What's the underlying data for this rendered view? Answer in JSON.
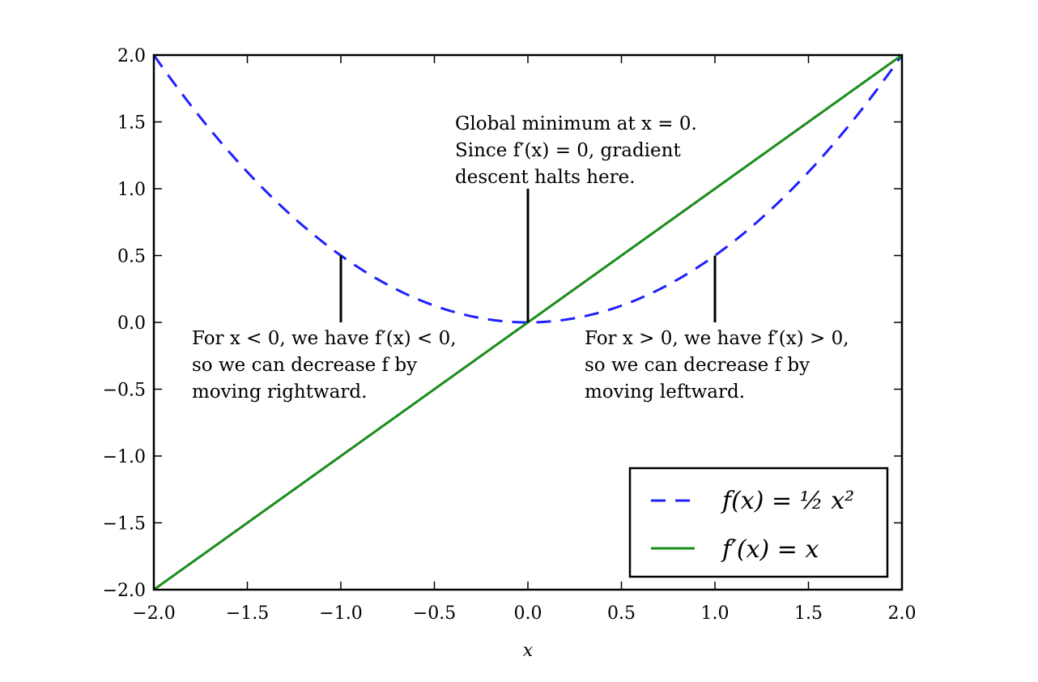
{
  "chart_data": {
    "type": "line",
    "xlabel": "x",
    "xlim": [
      -2.0,
      2.0
    ],
    "ylim": [
      -2.0,
      2.0
    ],
    "x_ticks": [
      "−2.0",
      "−1.5",
      "−1.0",
      "−0.5",
      "0.0",
      "0.5",
      "1.0",
      "1.5",
      "2.0"
    ],
    "y_ticks": [
      "−2.0",
      "−1.5",
      "−1.0",
      "−0.5",
      "0.0",
      "0.5",
      "1.0",
      "1.5",
      "2.0"
    ],
    "grid": false,
    "legend_position": "bottom-right",
    "series": [
      {
        "name": "f(x) = ½ x²",
        "function": "0.5*x^2",
        "style": "dashed",
        "color": "#1f1fff"
      },
      {
        "name": "f′(x) = x",
        "function": "x",
        "style": "solid",
        "color": "#1a8c1a"
      }
    ],
    "annotations": [
      {
        "lines": [
          "Global minimum at x = 0.",
          "Since f′(x) = 0, gradient",
          "descent halts here."
        ],
        "point": [
          0.0,
          0.0
        ],
        "text_anchor": [
          0.0,
          1.0
        ]
      },
      {
        "lines": [
          "For x < 0, we have f′(x) < 0,",
          "so we can decrease f by",
          "moving rightward."
        ],
        "point": [
          -1.0,
          0.5
        ],
        "text_anchor": [
          -1.0,
          0.0
        ]
      },
      {
        "lines": [
          "For x > 0, we have f′(x) > 0,",
          "so we can decrease f by",
          "moving leftward."
        ],
        "point": [
          1.0,
          0.5
        ],
        "text_anchor": [
          1.0,
          0.0
        ]
      }
    ]
  }
}
